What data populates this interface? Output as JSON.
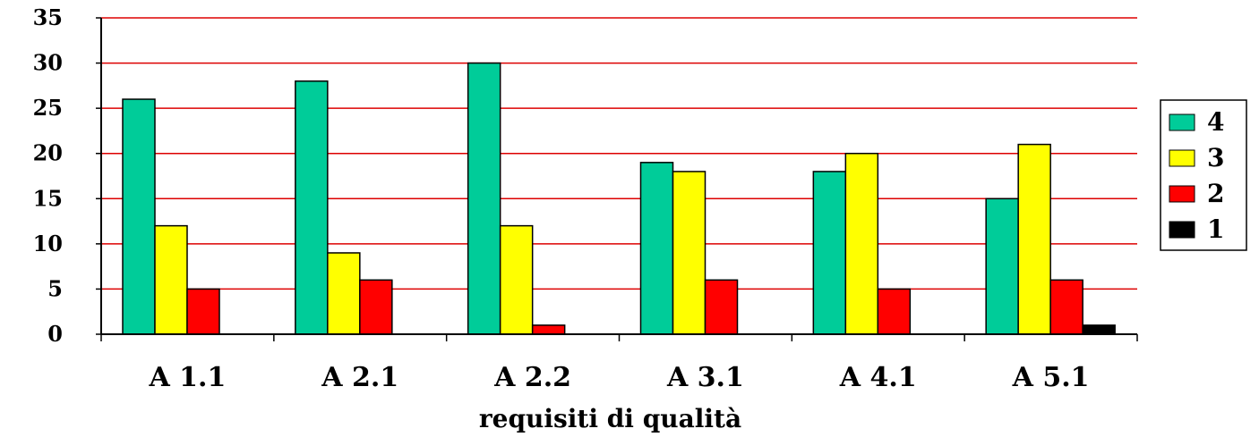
{
  "chart_data": {
    "type": "bar",
    "title": "",
    "xlabel": "requisiti di qualità",
    "ylabel": "",
    "ylim": [
      0,
      35
    ],
    "yticks": [
      0,
      5,
      10,
      15,
      20,
      25,
      30,
      35
    ],
    "grid": "horizontal",
    "legend_position": "right",
    "categories": [
      "A 1.1",
      "A 2.1",
      "A 2.2",
      "A 3.1",
      "A 4.1",
      "A 5.1"
    ],
    "series": [
      {
        "name": "4",
        "color": "#00cc99",
        "values": [
          26,
          28,
          30,
          19,
          18,
          15
        ]
      },
      {
        "name": "3",
        "color": "#ffff00",
        "values": [
          12,
          9,
          12,
          18,
          20,
          21
        ]
      },
      {
        "name": "2",
        "color": "#ff0000",
        "values": [
          5,
          6,
          1,
          6,
          5,
          6
        ]
      },
      {
        "name": "1",
        "color": "#000000",
        "values": [
          0,
          0,
          0,
          0,
          0,
          1
        ]
      }
    ],
    "gridline_color": "#dd0000"
  }
}
